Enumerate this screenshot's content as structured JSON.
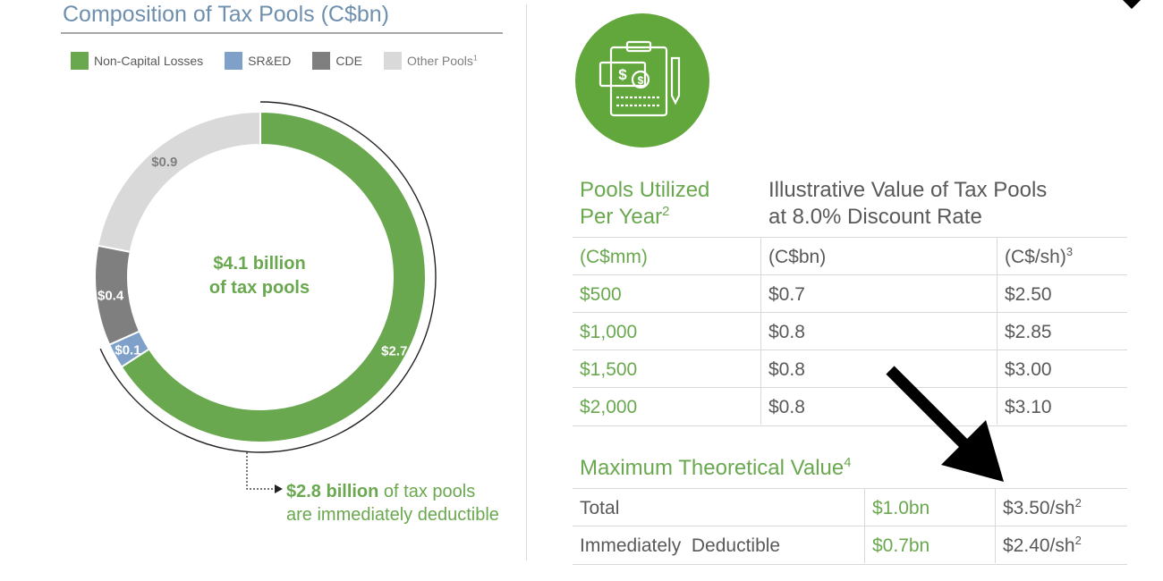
{
  "left_panel": {
    "title": "Composition of Tax Pools (C$bn)",
    "legend": [
      {
        "label": "Non-Capital Losses",
        "sup": "",
        "color": "#6aa84f"
      },
      {
        "label": "SR&ED",
        "sup": "",
        "color": "#7fa1c9"
      },
      {
        "label": "CDE",
        "sup": "",
        "color": "#7f7f7f"
      },
      {
        "label": "Other Pools",
        "sup": "1",
        "color": "#d9d9d9"
      }
    ],
    "center_line1": "$4.1 billion",
    "center_line2": "of tax pools",
    "note_bold": "$2.8 billion",
    "note_rest": " of tax pools are immediately deductible"
  },
  "chart_data": {
    "type": "pie",
    "title": "Composition of Tax Pools (C$bn)",
    "categories": [
      "Non-Capital Losses",
      "SR&ED",
      "CDE",
      "Other Pools"
    ],
    "values": [
      2.7,
      0.1,
      0.4,
      0.9
    ],
    "labels": [
      "$2.7",
      "$0.1",
      "$0.4",
      "$0.9"
    ],
    "colors": [
      "#6aa84f",
      "#7fa1c9",
      "#7f7f7f",
      "#d9d9d9"
    ],
    "total_label": "$4.1 billion of tax pools"
  },
  "right_panel": {
    "icon": "clipboard-money-icon",
    "col1_header_line1": "Pools Utilized",
    "col1_header_line2": "Per Year",
    "col1_header_sup": "2",
    "col2_header_line1": "Illustrative Value of Tax Pools",
    "col2_header_line2": "at 8.0% Discount Rate",
    "units": [
      "(C$mm)",
      "(C$bn)",
      "(C$/sh)"
    ],
    "units_sup": "3",
    "rows": [
      {
        "pools": "$500",
        "value_bn": "$0.7",
        "value_sh": "$2.50"
      },
      {
        "pools": "$1,000",
        "value_bn": "$0.8",
        "value_sh": "$2.85"
      },
      {
        "pools": "$1,500",
        "value_bn": "$0.8",
        "value_sh": "$3.00"
      },
      {
        "pools": "$2,000",
        "value_bn": "$0.8",
        "value_sh": "$3.10"
      }
    ],
    "max_header": "Maximum Theoretical Value",
    "max_header_sup": "4",
    "max_rows": [
      {
        "label": "Total",
        "bn": "$1.0bn",
        "sh": "$3.50/sh",
        "sup": "2"
      },
      {
        "label": "Immediately  Deductible",
        "bn": "$0.7bn",
        "sh": "$2.40/sh",
        "sup": "2"
      }
    ]
  }
}
